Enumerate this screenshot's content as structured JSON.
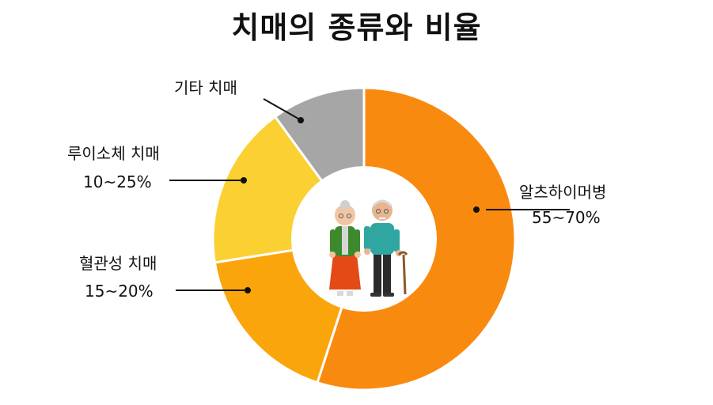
{
  "chart_data": {
    "type": "pie",
    "variant": "donut",
    "title": "치매의 종류와 비율",
    "start_angle_deg": 0,
    "direction": "clockwise",
    "slices": [
      {
        "label": "알츠하이머병",
        "range_label": "55~70%",
        "value": 55,
        "color": "#F98A10"
      },
      {
        "label": "혈관성 치매",
        "range_label": "15~20%",
        "value": 17.5,
        "color": "#FBA50D"
      },
      {
        "label": "루이소체 치매",
        "range_label": "10~25%",
        "value": 17.5,
        "color": "#FBD033"
      },
      {
        "label": "기타 치매",
        "range_label": "",
        "value": 10,
        "color": "#A6A6A6"
      }
    ],
    "center_image": "elderly-couple-illustration"
  }
}
